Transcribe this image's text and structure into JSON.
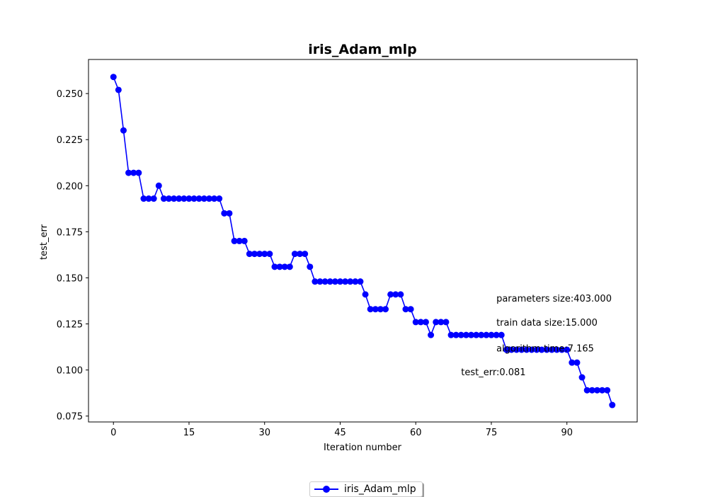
{
  "chart_data": {
    "type": "line",
    "title": "iris_Adam_mlp",
    "xlabel": "Iteration number",
    "ylabel": "test_err",
    "xlim": [
      -4.95,
      103.95
    ],
    "ylim": [
      0.0718,
      0.2685
    ],
    "xticks": [
      0,
      15,
      30,
      45,
      60,
      75,
      90
    ],
    "yticks": [
      0.075,
      0.1,
      0.125,
      0.15,
      0.175,
      0.2,
      0.225,
      0.25
    ],
    "ytick_labels": [
      "0.075",
      "0.100",
      "0.125",
      "0.150",
      "0.175",
      "0.200",
      "0.225",
      "0.250"
    ],
    "grid": false,
    "legend_position": "bottom-center",
    "series": [
      {
        "name": "iris_Adam_mlp",
        "color": "#0000ff",
        "marker": "circle",
        "x": [
          0,
          1,
          2,
          3,
          4,
          5,
          6,
          7,
          8,
          9,
          10,
          11,
          12,
          13,
          14,
          15,
          16,
          17,
          18,
          19,
          20,
          21,
          22,
          23,
          24,
          25,
          26,
          27,
          28,
          29,
          30,
          31,
          32,
          33,
          34,
          35,
          36,
          37,
          38,
          39,
          40,
          41,
          42,
          43,
          44,
          45,
          46,
          47,
          48,
          49,
          50,
          51,
          52,
          53,
          54,
          55,
          56,
          57,
          58,
          59,
          60,
          61,
          62,
          63,
          64,
          65,
          66,
          67,
          68,
          69,
          70,
          71,
          72,
          73,
          74,
          75,
          76,
          77,
          78,
          79,
          80,
          81,
          82,
          83,
          84,
          85,
          86,
          87,
          88,
          89,
          90,
          91,
          92,
          93,
          94,
          95,
          96,
          97,
          98,
          99
        ],
        "y": [
          0.259,
          0.252,
          0.23,
          0.207,
          0.207,
          0.207,
          0.193,
          0.193,
          0.193,
          0.2,
          0.193,
          0.193,
          0.193,
          0.193,
          0.193,
          0.193,
          0.193,
          0.193,
          0.193,
          0.193,
          0.193,
          0.193,
          0.185,
          0.185,
          0.17,
          0.17,
          0.17,
          0.163,
          0.163,
          0.163,
          0.163,
          0.163,
          0.156,
          0.156,
          0.156,
          0.156,
          0.163,
          0.163,
          0.163,
          0.156,
          0.148,
          0.148,
          0.148,
          0.148,
          0.148,
          0.148,
          0.148,
          0.148,
          0.148,
          0.148,
          0.141,
          0.133,
          0.133,
          0.133,
          0.133,
          0.141,
          0.141,
          0.141,
          0.133,
          0.133,
          0.126,
          0.126,
          0.126,
          0.119,
          0.126,
          0.126,
          0.126,
          0.119,
          0.119,
          0.119,
          0.119,
          0.119,
          0.119,
          0.119,
          0.119,
          0.119,
          0.119,
          0.119,
          0.111,
          0.111,
          0.111,
          0.111,
          0.111,
          0.111,
          0.111,
          0.111,
          0.111,
          0.111,
          0.111,
          0.111,
          0.111,
          0.104,
          0.104,
          0.096,
          0.089,
          0.089,
          0.089,
          0.089,
          0.089,
          0.081
        ]
      }
    ],
    "annotations": [
      {
        "text": "parameters size:403.000",
        "x": 76,
        "y": 0.139
      },
      {
        "text": "train data size:15.000",
        "x": 76,
        "y": 0.126
      },
      {
        "text": "algorithm time:7.165",
        "x": 76,
        "y": 0.112
      },
      {
        "text": "test_err:0.081",
        "x": 69,
        "y": 0.099
      }
    ]
  }
}
